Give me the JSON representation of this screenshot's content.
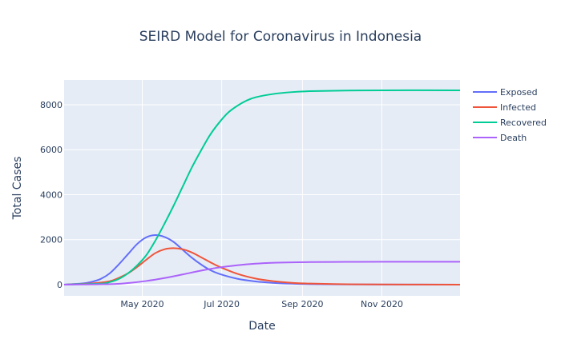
{
  "chart_data": {
    "type": "line",
    "title": "SEIRD Model for Coronavirus in Indonesia",
    "xlabel": "Date",
    "ylabel": "Total Cases",
    "x_tick_labels": [
      "May 2020",
      "Jul 2020",
      "Sep 2020",
      "Nov 2020"
    ],
    "y_tick_labels": [
      "0",
      "2000",
      "4000",
      "6000",
      "8000"
    ],
    "x_axis_type": "date",
    "x_range": [
      "2020-03-02",
      "2020-12-31"
    ],
    "ylim": [
      -500,
      9100
    ],
    "grid": true,
    "legend_position": "top-right",
    "series": [
      {
        "name": "Exposed",
        "color": "#636efa",
        "points": [
          [
            "2020-03-02",
            0
          ],
          [
            "2020-03-16",
            50
          ],
          [
            "2020-03-23",
            120
          ],
          [
            "2020-03-30",
            250
          ],
          [
            "2020-04-06",
            500
          ],
          [
            "2020-04-13",
            900
          ],
          [
            "2020-04-20",
            1350
          ],
          [
            "2020-04-27",
            1800
          ],
          [
            "2020-05-04",
            2100
          ],
          [
            "2020-05-11",
            2200
          ],
          [
            "2020-05-18",
            2120
          ],
          [
            "2020-05-25",
            1900
          ],
          [
            "2020-06-01",
            1550
          ],
          [
            "2020-06-08",
            1200
          ],
          [
            "2020-06-15",
            900
          ],
          [
            "2020-06-22",
            650
          ],
          [
            "2020-06-29",
            480
          ],
          [
            "2020-07-13",
            260
          ],
          [
            "2020-07-27",
            140
          ],
          [
            "2020-08-10",
            75
          ],
          [
            "2020-08-24",
            40
          ],
          [
            "2020-09-07",
            20
          ],
          [
            "2020-10-05",
            8
          ],
          [
            "2020-11-02",
            3
          ],
          [
            "2020-12-31",
            0
          ]
        ]
      },
      {
        "name": "Infected",
        "color": "#ef553b",
        "points": [
          [
            "2020-03-02",
            0
          ],
          [
            "2020-03-23",
            50
          ],
          [
            "2020-04-06",
            150
          ],
          [
            "2020-04-13",
            300
          ],
          [
            "2020-04-20",
            500
          ],
          [
            "2020-04-27",
            780
          ],
          [
            "2020-05-04",
            1100
          ],
          [
            "2020-05-11",
            1400
          ],
          [
            "2020-05-18",
            1570
          ],
          [
            "2020-05-25",
            1620
          ],
          [
            "2020-06-01",
            1570
          ],
          [
            "2020-06-08",
            1430
          ],
          [
            "2020-06-15",
            1220
          ],
          [
            "2020-06-22",
            1000
          ],
          [
            "2020-06-29",
            800
          ],
          [
            "2020-07-13",
            480
          ],
          [
            "2020-07-27",
            270
          ],
          [
            "2020-08-10",
            150
          ],
          [
            "2020-08-24",
            80
          ],
          [
            "2020-09-07",
            45
          ],
          [
            "2020-10-05",
            15
          ],
          [
            "2020-11-02",
            5
          ],
          [
            "2020-12-31",
            0
          ]
        ]
      },
      {
        "name": "Recovered",
        "color": "#00cc96",
        "points": [
          [
            "2020-03-02",
            0
          ],
          [
            "2020-03-30",
            40
          ],
          [
            "2020-04-06",
            110
          ],
          [
            "2020-04-13",
            250
          ],
          [
            "2020-04-20",
            500
          ],
          [
            "2020-04-27",
            850
          ],
          [
            "2020-05-04",
            1300
          ],
          [
            "2020-05-11",
            1950
          ],
          [
            "2020-05-18",
            2700
          ],
          [
            "2020-05-25",
            3500
          ],
          [
            "2020-06-01",
            4350
          ],
          [
            "2020-06-08",
            5200
          ],
          [
            "2020-06-15",
            5950
          ],
          [
            "2020-06-22",
            6650
          ],
          [
            "2020-06-29",
            7200
          ],
          [
            "2020-07-06",
            7650
          ],
          [
            "2020-07-13",
            7950
          ],
          [
            "2020-07-20",
            8180
          ],
          [
            "2020-07-27",
            8330
          ],
          [
            "2020-08-10",
            8480
          ],
          [
            "2020-08-24",
            8560
          ],
          [
            "2020-09-07",
            8600
          ],
          [
            "2020-10-05",
            8630
          ],
          [
            "2020-11-02",
            8640
          ],
          [
            "2020-12-31",
            8640
          ]
        ]
      },
      {
        "name": "Death",
        "color": "#ab63fa",
        "points": [
          [
            "2020-03-02",
            0
          ],
          [
            "2020-04-06",
            20
          ],
          [
            "2020-04-20",
            70
          ],
          [
            "2020-05-04",
            160
          ],
          [
            "2020-05-18",
            290
          ],
          [
            "2020-06-01",
            450
          ],
          [
            "2020-06-15",
            620
          ],
          [
            "2020-06-29",
            760
          ],
          [
            "2020-07-13",
            860
          ],
          [
            "2020-07-27",
            930
          ],
          [
            "2020-08-10",
            970
          ],
          [
            "2020-08-24",
            990
          ],
          [
            "2020-09-07",
            1000
          ],
          [
            "2020-10-05",
            1010
          ],
          [
            "2020-11-02",
            1015
          ],
          [
            "2020-12-31",
            1015
          ]
        ]
      }
    ]
  }
}
